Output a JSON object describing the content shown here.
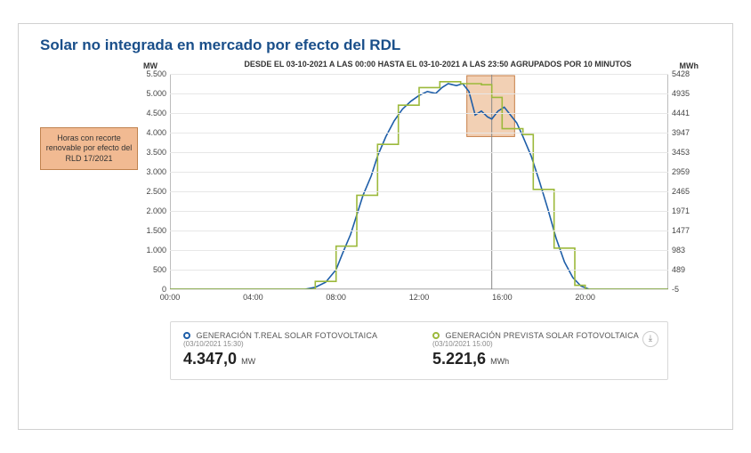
{
  "title": "Solar no integrada en mercado por efecto del RDL",
  "subtitle": "DESDE EL 03-10-2021 A LAS 00:00 HASTA EL 03-10-2021 A LAS 23:50 AGRUPADOS POR 10 MINUTOS",
  "callout_text": "Horas con recorte renovable por efecto del RLD 17/2021",
  "chart": {
    "type": "line+step",
    "x_domain_hours": [
      0,
      24
    ],
    "x_ticks": [
      "00:00",
      "04:00",
      "08:00",
      "12:00",
      "16:00",
      "20:00"
    ],
    "x_tick_hours": [
      0,
      4,
      8,
      12,
      16,
      20
    ],
    "y_left_title": "MW",
    "y_right_title": "MWh",
    "y_left_ticks": [
      0,
      500,
      1000,
      1500,
      2000,
      2500,
      3000,
      3500,
      4000,
      4500,
      5000,
      5500
    ],
    "y_left_tick_labels": [
      "0",
      "500",
      "1.000",
      "1.500",
      "2.000",
      "2.500",
      "3.000",
      "3.500",
      "4.000",
      "4.500",
      "5.000",
      "5.500"
    ],
    "y_right_tick_labels": [
      "-5",
      "489",
      "983",
      "1477",
      "1971",
      "2465",
      "2959",
      "3453",
      "3947",
      "4441",
      "4935",
      "5428"
    ],
    "y_left_lim": [
      0,
      5500
    ],
    "grid_color": "#e7e7e7",
    "background_color": "#ffffff",
    "line_width": 1.6,
    "highlight_region_hours": [
      14.3,
      16.6
    ],
    "highlight_fill": "#e8a977",
    "highlight_stroke": "#c77e45",
    "crosshair_hour": 15.5,
    "crosshair_color": "#888888",
    "series": [
      {
        "id": "real",
        "type": "line",
        "color": "#1e5ea8",
        "points_hours_mw": [
          [
            0,
            0
          ],
          [
            6.5,
            0
          ],
          [
            7.0,
            50
          ],
          [
            7.5,
            180
          ],
          [
            8.0,
            500
          ],
          [
            8.3,
            900
          ],
          [
            8.7,
            1400
          ],
          [
            9.0,
            1900
          ],
          [
            9.3,
            2400
          ],
          [
            9.7,
            2900
          ],
          [
            10.0,
            3400
          ],
          [
            10.4,
            3900
          ],
          [
            10.8,
            4300
          ],
          [
            11.2,
            4600
          ],
          [
            11.6,
            4800
          ],
          [
            12.0,
            4950
          ],
          [
            12.4,
            5050
          ],
          [
            12.8,
            5000
          ],
          [
            13.1,
            5150
          ],
          [
            13.4,
            5250
          ],
          [
            13.8,
            5200
          ],
          [
            14.1,
            5250
          ],
          [
            14.4,
            5050
          ],
          [
            14.7,
            4450
          ],
          [
            15.0,
            4550
          ],
          [
            15.3,
            4400
          ],
          [
            15.5,
            4347
          ],
          [
            15.8,
            4550
          ],
          [
            16.1,
            4650
          ],
          [
            16.4,
            4450
          ],
          [
            16.7,
            4250
          ],
          [
            17.0,
            3900
          ],
          [
            17.4,
            3400
          ],
          [
            17.8,
            2750
          ],
          [
            18.2,
            2050
          ],
          [
            18.6,
            1300
          ],
          [
            19.0,
            700
          ],
          [
            19.4,
            300
          ],
          [
            19.8,
            80
          ],
          [
            20.2,
            0
          ],
          [
            24,
            0
          ]
        ]
      },
      {
        "id": "prevista",
        "type": "step",
        "color": "#9cb93b",
        "points_hours_mw": [
          [
            0,
            0
          ],
          [
            7.0,
            0
          ],
          [
            7.0,
            200
          ],
          [
            8.0,
            200
          ],
          [
            8.0,
            1100
          ],
          [
            9.0,
            1100
          ],
          [
            9.0,
            2400
          ],
          [
            10.0,
            2400
          ],
          [
            10.0,
            3700
          ],
          [
            11.0,
            3700
          ],
          [
            11.0,
            4700
          ],
          [
            12.0,
            4700
          ],
          [
            12.0,
            5150
          ],
          [
            13.0,
            5150
          ],
          [
            13.0,
            5300
          ],
          [
            14.0,
            5300
          ],
          [
            14.0,
            5250
          ],
          [
            15.0,
            5250
          ],
          [
            15.0,
            5222
          ],
          [
            15.5,
            5222
          ],
          [
            15.5,
            4900
          ],
          [
            16.0,
            4900
          ],
          [
            16.0,
            4100
          ],
          [
            17.0,
            4100
          ],
          [
            17.0,
            3950
          ],
          [
            17.5,
            3950
          ],
          [
            17.5,
            2550
          ],
          [
            18.5,
            2550
          ],
          [
            18.5,
            1050
          ],
          [
            19.5,
            1050
          ],
          [
            19.5,
            100
          ],
          [
            20.0,
            100
          ],
          [
            20.0,
            0
          ],
          [
            24,
            0
          ]
        ]
      }
    ]
  },
  "legend": {
    "real": {
      "marker_color": "#1e5ea8",
      "name": "GENERACIÓN T.REAL SOLAR FOTOVOLTAICA",
      "ts": "(03/10/2021 15:30)",
      "value": "4.347,0",
      "unit": "MW"
    },
    "prevista": {
      "marker_color": "#9cb93b",
      "name": "GENERACIÓN PREVISTA SOLAR FOTOVOLTAICA",
      "ts": "(03/10/2021 15:00)",
      "value": "5.221,6",
      "unit": "MWh"
    },
    "download_icon_glyph": "⤓"
  }
}
